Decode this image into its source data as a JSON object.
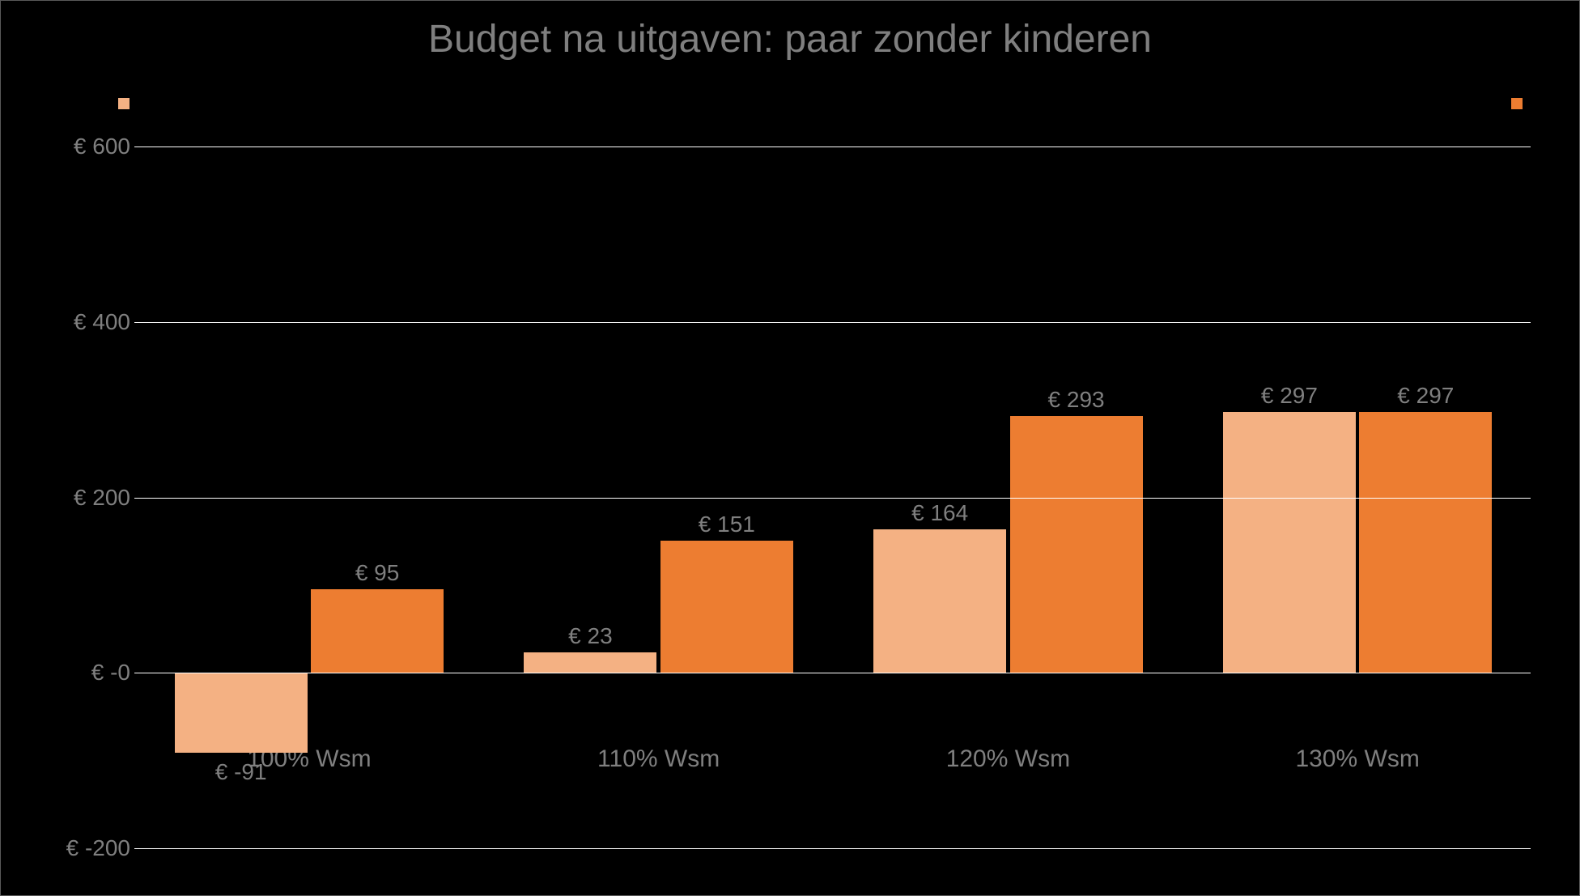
{
  "chart": {
    "type": "bar",
    "title": "Budget na uitgaven: paar zonder kinderen",
    "title_fontsize": 48,
    "title_color": "#7f7f7f",
    "background_color": "#000000",
    "border_color": "#595959",
    "label_color": "#7f7f7f",
    "gridline_color": "#ffffff",
    "font_family": "Arial",
    "categories": [
      "100% Wsm",
      "110% Wsm",
      "120% Wsm",
      "130% Wsm"
    ],
    "series": [
      {
        "name": "",
        "color": "#f4b183",
        "values": [
          -91,
          23,
          164,
          297
        ],
        "value_labels": [
          "€ -91",
          "€ 23",
          "€ 164",
          "€ 297"
        ]
      },
      {
        "name": "",
        "color": "#ed7d31",
        "values": [
          95,
          151,
          293,
          297
        ],
        "value_labels": [
          "€ 95",
          "€ 151",
          "€ 293",
          "€ 297"
        ]
      }
    ],
    "yaxis": {
      "min": -200,
      "max": 600,
      "tick_step": 200,
      "ticks": [
        -200,
        0,
        200,
        400,
        600
      ],
      "tick_labels": [
        "€ -200",
        "€ -0",
        "€ 200",
        "€ 400",
        "€ 600"
      ],
      "label_fontsize": 28
    },
    "xaxis": {
      "label_fontsize": 30
    },
    "bar_width_ratio": 0.38,
    "bar_group_gap_ratio": 0.01,
    "category_padding_ratio": 0.11,
    "value_label_fontsize": 28,
    "legend": {
      "marker_size": 14,
      "position": "top"
    }
  }
}
